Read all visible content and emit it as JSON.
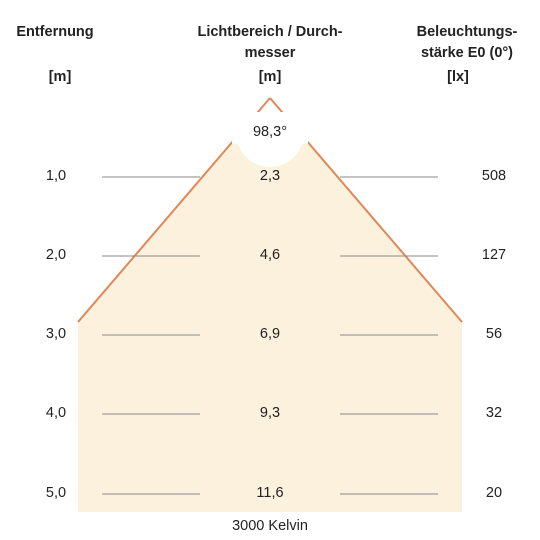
{
  "headers": {
    "distance": "Entfernung",
    "distance_unit": "[m]",
    "diameter_line1": "Lichtbereich / Durch-",
    "diameter_line2": "messer",
    "diameter_unit": "[m]",
    "illuminance_line1": "Beleuchtungs-",
    "illuminance_line2": "stärke E0 (0°)",
    "illuminance_unit": "[lx]"
  },
  "beam_angle": "98,3°",
  "color_temperature": "3000 Kelvin",
  "rows": [
    {
      "distance": "1,0",
      "diameter": "2,3",
      "illuminance": "508"
    },
    {
      "distance": "2,0",
      "diameter": "4,6",
      "illuminance": "127"
    },
    {
      "distance": "3,0",
      "diameter": "6,9",
      "illuminance": "56"
    },
    {
      "distance": "4,0",
      "diameter": "9,3",
      "illuminance": "32"
    },
    {
      "distance": "5,0",
      "diameter": "11,6",
      "illuminance": "20"
    }
  ],
  "colors": {
    "light_cone": "#fcf1dc",
    "beam_edge": "#e0875a",
    "row_line": "#8a8a8a"
  }
}
